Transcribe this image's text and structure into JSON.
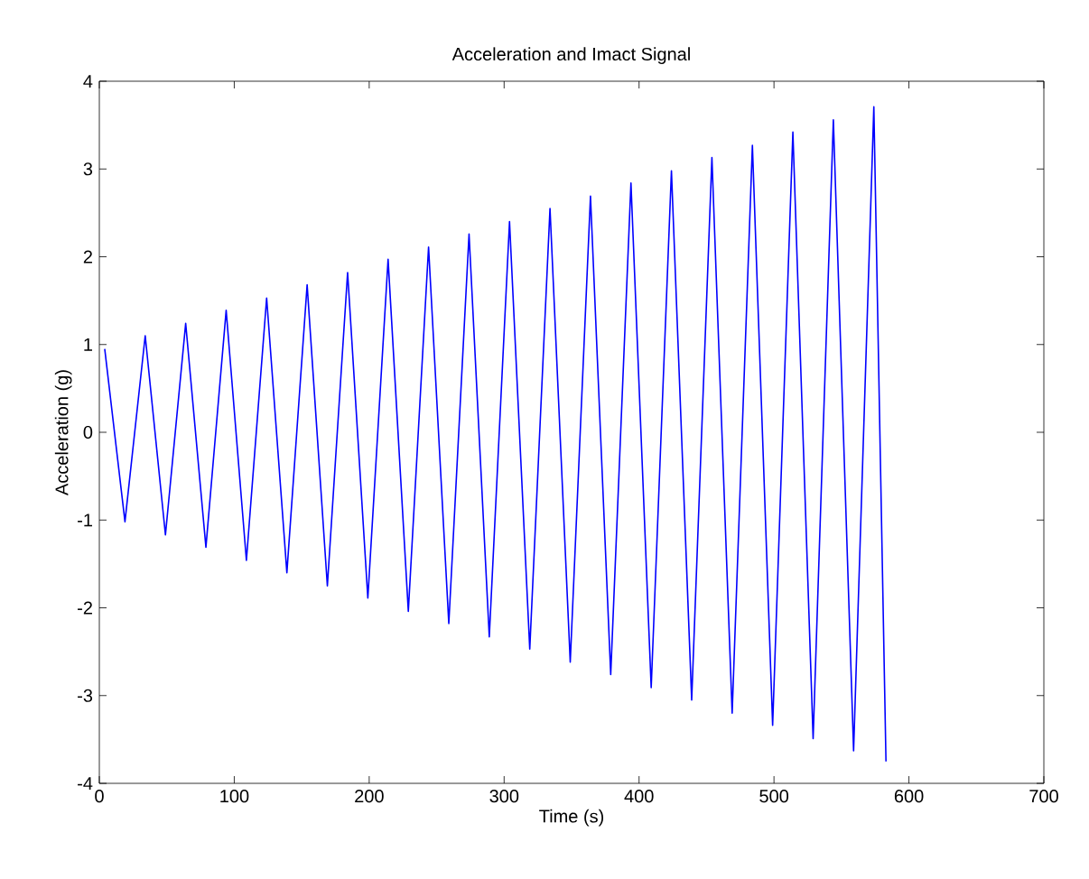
{
  "chart_data": {
    "type": "line",
    "title": "Acceleration and Imact Signal",
    "xlabel": "Time (s)",
    "ylabel": "Acceleration (g)",
    "xlim": [
      0,
      700
    ],
    "xticks": [
      0,
      100,
      200,
      300,
      400,
      500,
      600,
      700
    ],
    "ylim": [
      -4,
      4
    ],
    "yticks": [
      -4,
      -3,
      -2,
      -1,
      0,
      1,
      2,
      3,
      4
    ],
    "marker": "none",
    "line_style": "solid",
    "x": [
      4,
      19,
      34,
      49,
      64,
      79,
      94,
      109,
      124,
      139,
      154,
      169,
      184,
      199,
      214,
      229,
      244,
      259,
      274,
      289,
      304,
      319,
      334,
      349,
      364,
      379,
      394,
      409,
      424,
      439,
      454,
      469,
      484,
      499,
      514,
      529,
      544,
      559,
      574,
      583
    ],
    "series": [
      {
        "color": "#0000ff",
        "values": [
          0.95,
          -1.02,
          1.1,
          -1.17,
          1.24,
          -1.31,
          1.39,
          -1.46,
          1.53,
          -1.6,
          1.68,
          -1.75,
          1.82,
          -1.89,
          1.97,
          -2.04,
          2.11,
          -2.18,
          2.26,
          -2.33,
          2.4,
          -2.47,
          2.55,
          -2.62,
          2.69,
          -2.76,
          2.84,
          -2.91,
          2.98,
          -3.05,
          3.13,
          -3.2,
          3.27,
          -3.34,
          3.42,
          -3.49,
          3.56,
          -3.63,
          3.71,
          -3.75
        ]
      }
    ]
  }
}
